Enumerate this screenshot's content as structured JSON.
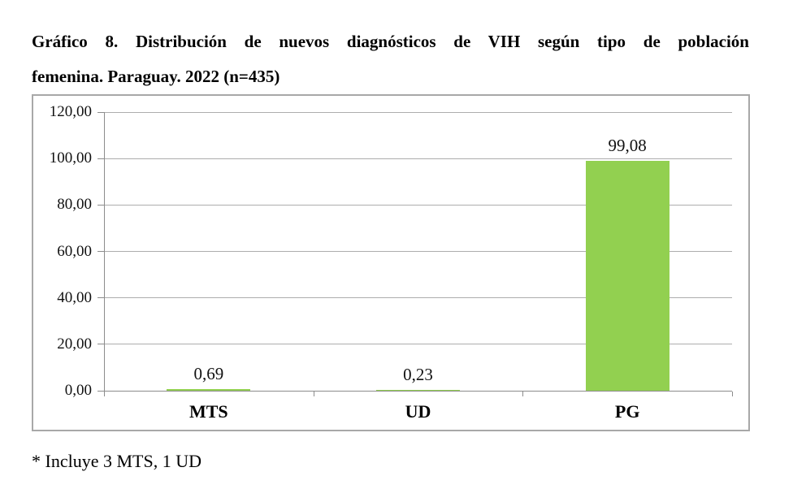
{
  "page": {
    "title_line1": "Gráfico 8.  Distribución de nuevos diagnósticos de VIH según tipo de población",
    "title_line2": "femenina. Paraguay. 2022 (n=435)",
    "footnote": "* Incluye 3 MTS, 1 UD"
  },
  "chart_data": {
    "type": "bar",
    "title": "Gráfico 8. Distribución de nuevos diagnósticos de VIH según tipo de población femenina. Paraguay. 2022 (n=435)",
    "categories": [
      "MTS",
      "UD",
      "PG"
    ],
    "values": [
      0.69,
      0.23,
      99.08
    ],
    "value_labels": [
      "0,69",
      "0,23",
      "99,08"
    ],
    "y_ticks": [
      "120,00",
      "100,00",
      "80,00",
      "60,00",
      "40,00",
      "20,00",
      "0,00"
    ],
    "ylim": [
      0,
      120
    ],
    "y_step": 20,
    "grid": true,
    "legend": "none",
    "xlabel": "",
    "ylabel": "",
    "colors": {
      "bar": "#92d050",
      "gridline": "#adadad",
      "axis": "#8c8c8c",
      "frame_border": "#a8a8a8",
      "text": "#000000"
    }
  }
}
